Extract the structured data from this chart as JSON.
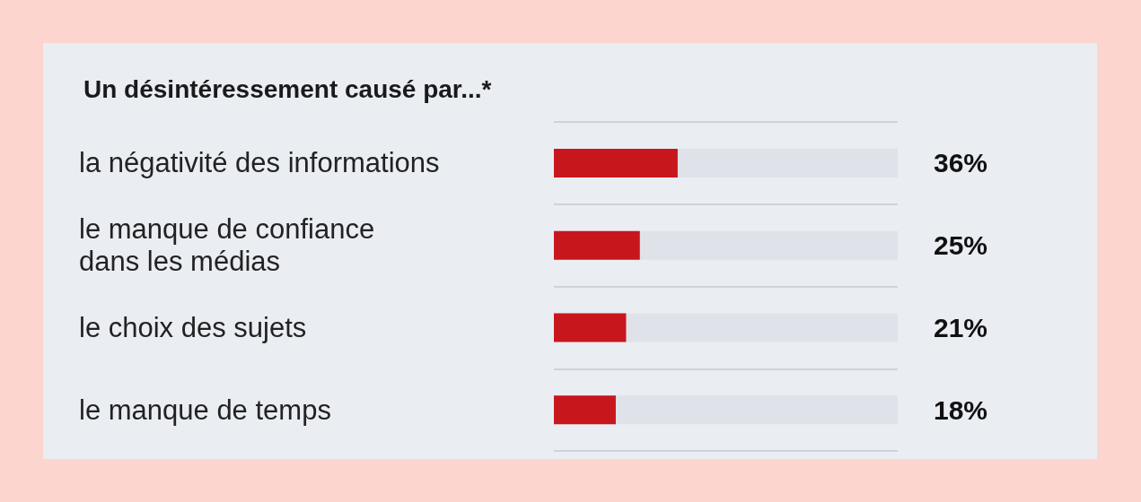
{
  "chart_data": {
    "type": "bar",
    "orientation": "horizontal",
    "title": "Un désintéressement causé par...*",
    "categories": [
      "la négativité des informations",
      "le manque de confiance\ndans les médias",
      "le choix des sujets",
      "le manque de temps"
    ],
    "values": [
      36,
      25,
      21,
      18
    ],
    "color": "#c8161d",
    "value_labels": [
      "36%",
      "25%",
      "21%",
      "18%"
    ],
    "xlim": [
      0,
      100
    ],
    "tick_labels": "y",
    "grid": "y"
  }
}
